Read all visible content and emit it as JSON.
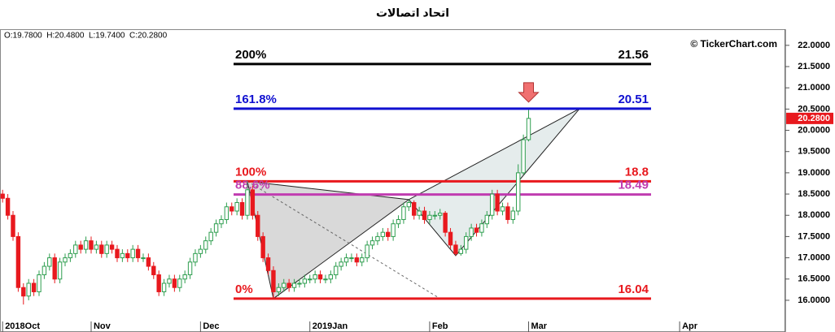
{
  "chart_data": {
    "type": "candlestick",
    "title": "اتحاد اتصالات",
    "ohlc_label": "O:19.7800  H:20.4800  L:19.7400  C:20.2800",
    "watermark": "© TickerChart.com",
    "up_color": "#2e9e4f",
    "down_color": "#e8191e",
    "open": [
      18.5,
      18.4,
      18.0,
      17.5,
      16.3,
      16.1,
      16.4,
      16.2,
      16.6,
      16.8,
      17.0,
      16.5,
      16.9,
      17.0,
      17.1,
      17.3,
      17.2,
      17.4,
      17.2,
      17.3,
      17.1,
      17.3,
      17.2,
      17.0,
      17.1,
      17.0,
      17.2,
      17.0,
      17.0,
      16.8,
      16.6,
      16.2,
      16.4,
      16.5,
      16.3,
      16.5,
      16.6,
      16.9,
      17.1,
      17.2,
      17.4,
      17.6,
      17.8,
      17.9,
      18.2,
      18.1,
      18.3,
      18.0,
      18.6,
      18.0,
      17.5,
      17.0,
      16.7,
      16.2,
      16.3,
      16.4,
      16.3,
      16.4,
      16.4,
      16.5,
      16.5,
      16.6,
      16.5,
      16.5,
      16.6,
      16.8,
      16.9,
      17.0,
      17.0,
      16.9,
      17.0,
      17.3,
      17.4,
      17.5,
      17.6,
      17.5,
      17.8,
      17.9,
      18.2,
      18.3,
      18.0,
      18.1,
      17.9,
      18.0,
      18.0,
      18.05,
      17.6,
      17.3,
      17.1,
      17.2,
      17.5,
      17.7,
      17.6,
      17.8,
      18.0,
      18.5,
      18.1,
      18.2,
      17.9,
      18.1,
      19.0,
      19.78
    ],
    "high": [
      18.6,
      18.5,
      18.1,
      17.6,
      16.4,
      16.5,
      16.5,
      16.7,
      16.9,
      17.1,
      17.1,
      17.0,
      17.1,
      17.2,
      17.4,
      17.4,
      17.5,
      17.5,
      17.4,
      17.4,
      17.4,
      17.4,
      17.3,
      17.2,
      17.2,
      17.3,
      17.3,
      17.1,
      17.1,
      16.9,
      16.7,
      16.5,
      16.6,
      16.6,
      16.6,
      16.7,
      17.0,
      17.2,
      17.3,
      17.5,
      17.7,
      17.9,
      18.0,
      18.3,
      18.3,
      18.4,
      18.4,
      18.8,
      18.7,
      18.1,
      17.6,
      17.1,
      16.8,
      16.4,
      16.5,
      16.5,
      16.5,
      16.5,
      16.6,
      16.6,
      16.7,
      16.7,
      16.6,
      16.7,
      16.9,
      17.0,
      17.1,
      17.1,
      17.1,
      17.1,
      17.4,
      17.5,
      17.6,
      17.7,
      17.7,
      17.9,
      18.0,
      18.3,
      18.37,
      18.35,
      18.2,
      18.2,
      18.1,
      18.1,
      18.15,
      18.1,
      17.7,
      17.4,
      17.3,
      17.6,
      17.8,
      17.8,
      17.9,
      18.1,
      18.6,
      18.6,
      18.3,
      18.3,
      18.2,
      19.2,
      19.9,
      20.48
    ],
    "low": [
      18.3,
      17.9,
      17.4,
      16.2,
      15.9,
      16.0,
      16.1,
      16.1,
      16.5,
      16.7,
      16.4,
      16.4,
      16.8,
      16.9,
      17.0,
      17.1,
      17.1,
      17.1,
      17.1,
      17.0,
      17.0,
      17.1,
      16.9,
      16.9,
      16.9,
      16.9,
      16.9,
      16.9,
      16.7,
      16.5,
      16.1,
      16.1,
      16.3,
      16.2,
      16.2,
      16.4,
      16.5,
      16.8,
      17.0,
      17.1,
      17.3,
      17.5,
      17.7,
      17.8,
      18.0,
      18.0,
      17.9,
      17.9,
      17.9,
      17.4,
      16.9,
      16.6,
      16.04,
      16.1,
      16.2,
      16.2,
      16.2,
      16.3,
      16.3,
      16.4,
      16.4,
      16.4,
      16.4,
      16.4,
      16.5,
      16.7,
      16.8,
      16.9,
      16.8,
      16.8,
      16.9,
      17.2,
      17.3,
      17.4,
      17.4,
      17.4,
      17.7,
      17.8,
      18.1,
      17.9,
      17.9,
      17.8,
      17.8,
      17.9,
      17.9,
      17.5,
      17.2,
      17.05,
      17.05,
      17.1,
      17.4,
      17.5,
      17.5,
      17.7,
      17.9,
      18.0,
      18.0,
      17.8,
      17.8,
      18.0,
      18.95,
      19.74
    ],
    "close": [
      18.4,
      18.0,
      17.5,
      16.3,
      16.1,
      16.4,
      16.2,
      16.6,
      16.8,
      17.0,
      16.5,
      16.9,
      17.0,
      17.1,
      17.3,
      17.2,
      17.4,
      17.2,
      17.3,
      17.1,
      17.3,
      17.2,
      17.0,
      17.1,
      17.0,
      17.2,
      17.0,
      17.0,
      16.8,
      16.6,
      16.2,
      16.4,
      16.5,
      16.3,
      16.5,
      16.6,
      16.9,
      17.1,
      17.2,
      17.4,
      17.6,
      17.8,
      17.9,
      18.2,
      18.1,
      18.3,
      18.0,
      18.6,
      18.0,
      17.5,
      17.0,
      16.7,
      16.2,
      16.3,
      16.4,
      16.3,
      16.4,
      16.4,
      16.5,
      16.5,
      16.6,
      16.5,
      16.5,
      16.6,
      16.8,
      16.9,
      17.0,
      17.0,
      16.9,
      17.0,
      17.3,
      17.4,
      17.5,
      17.6,
      17.5,
      17.8,
      17.9,
      18.2,
      18.3,
      18.0,
      18.1,
      17.9,
      18.0,
      18.0,
      18.05,
      17.6,
      17.3,
      17.1,
      17.2,
      17.5,
      17.7,
      17.6,
      17.8,
      18.0,
      18.5,
      18.1,
      18.2,
      17.9,
      18.1,
      19.0,
      19.78,
      20.28
    ],
    "xlim": [
      -0.5,
      150.3
    ],
    "xticks": [
      {
        "value": 0,
        "label": "2018Oct"
      },
      {
        "value": 17,
        "label": "Nov"
      },
      {
        "value": 38,
        "label": "Dec"
      },
      {
        "value": 59,
        "label": "2019Jan"
      },
      {
        "value": 82,
        "label": "Feb"
      },
      {
        "value": 101,
        "label": "Mar"
      },
      {
        "value": 130,
        "label": "Apr"
      }
    ],
    "ylim": [
      15.33,
      22.36
    ],
    "yticks": [
      {
        "value": 16,
        "label": "16.0000"
      },
      {
        "value": 16.5,
        "label": "16.5000"
      },
      {
        "value": 17,
        "label": "17.0000"
      },
      {
        "value": 17.5,
        "label": "17.5000"
      },
      {
        "value": 18,
        "label": "18.0000"
      },
      {
        "value": 18.5,
        "label": "18.5000"
      },
      {
        "value": 19,
        "label": "19.0000"
      },
      {
        "value": 19.5,
        "label": "19.5000"
      },
      {
        "value": 20,
        "label": "20.0000"
      },
      {
        "value": 20.5,
        "label": "20.5000"
      },
      {
        "value": 21,
        "label": "21.0000"
      },
      {
        "value": 21.5,
        "label": "21.5000"
      },
      {
        "value": 22,
        "label": "22.0000"
      }
    ],
    "last_price": {
      "value": 20.28,
      "label": "20.2800"
    },
    "levels": [
      {
        "label": "200%",
        "value": 21.56,
        "color": "#000000"
      },
      {
        "label": "161.8%",
        "value": 20.51,
        "color": "#1010d0"
      },
      {
        "label": "100%",
        "value": 18.8,
        "color": "#e8191e"
      },
      {
        "label": "88.6%",
        "value": 18.49,
        "color": "#c03cb0"
      },
      {
        "label": "0%",
        "value": 16.04,
        "color": "#e8191e"
      }
    ],
    "pattern": {
      "points": [
        {
          "x": 47,
          "y": 18.8
        },
        {
          "x": 52,
          "y": 16.04
        },
        {
          "x": 78,
          "y": 18.37
        },
        {
          "x": 87,
          "y": 17.05
        },
        {
          "x": 110.8,
          "y": 20.51
        }
      ],
      "projection": {
        "x": 84,
        "y": 16.04
      }
    }
  }
}
